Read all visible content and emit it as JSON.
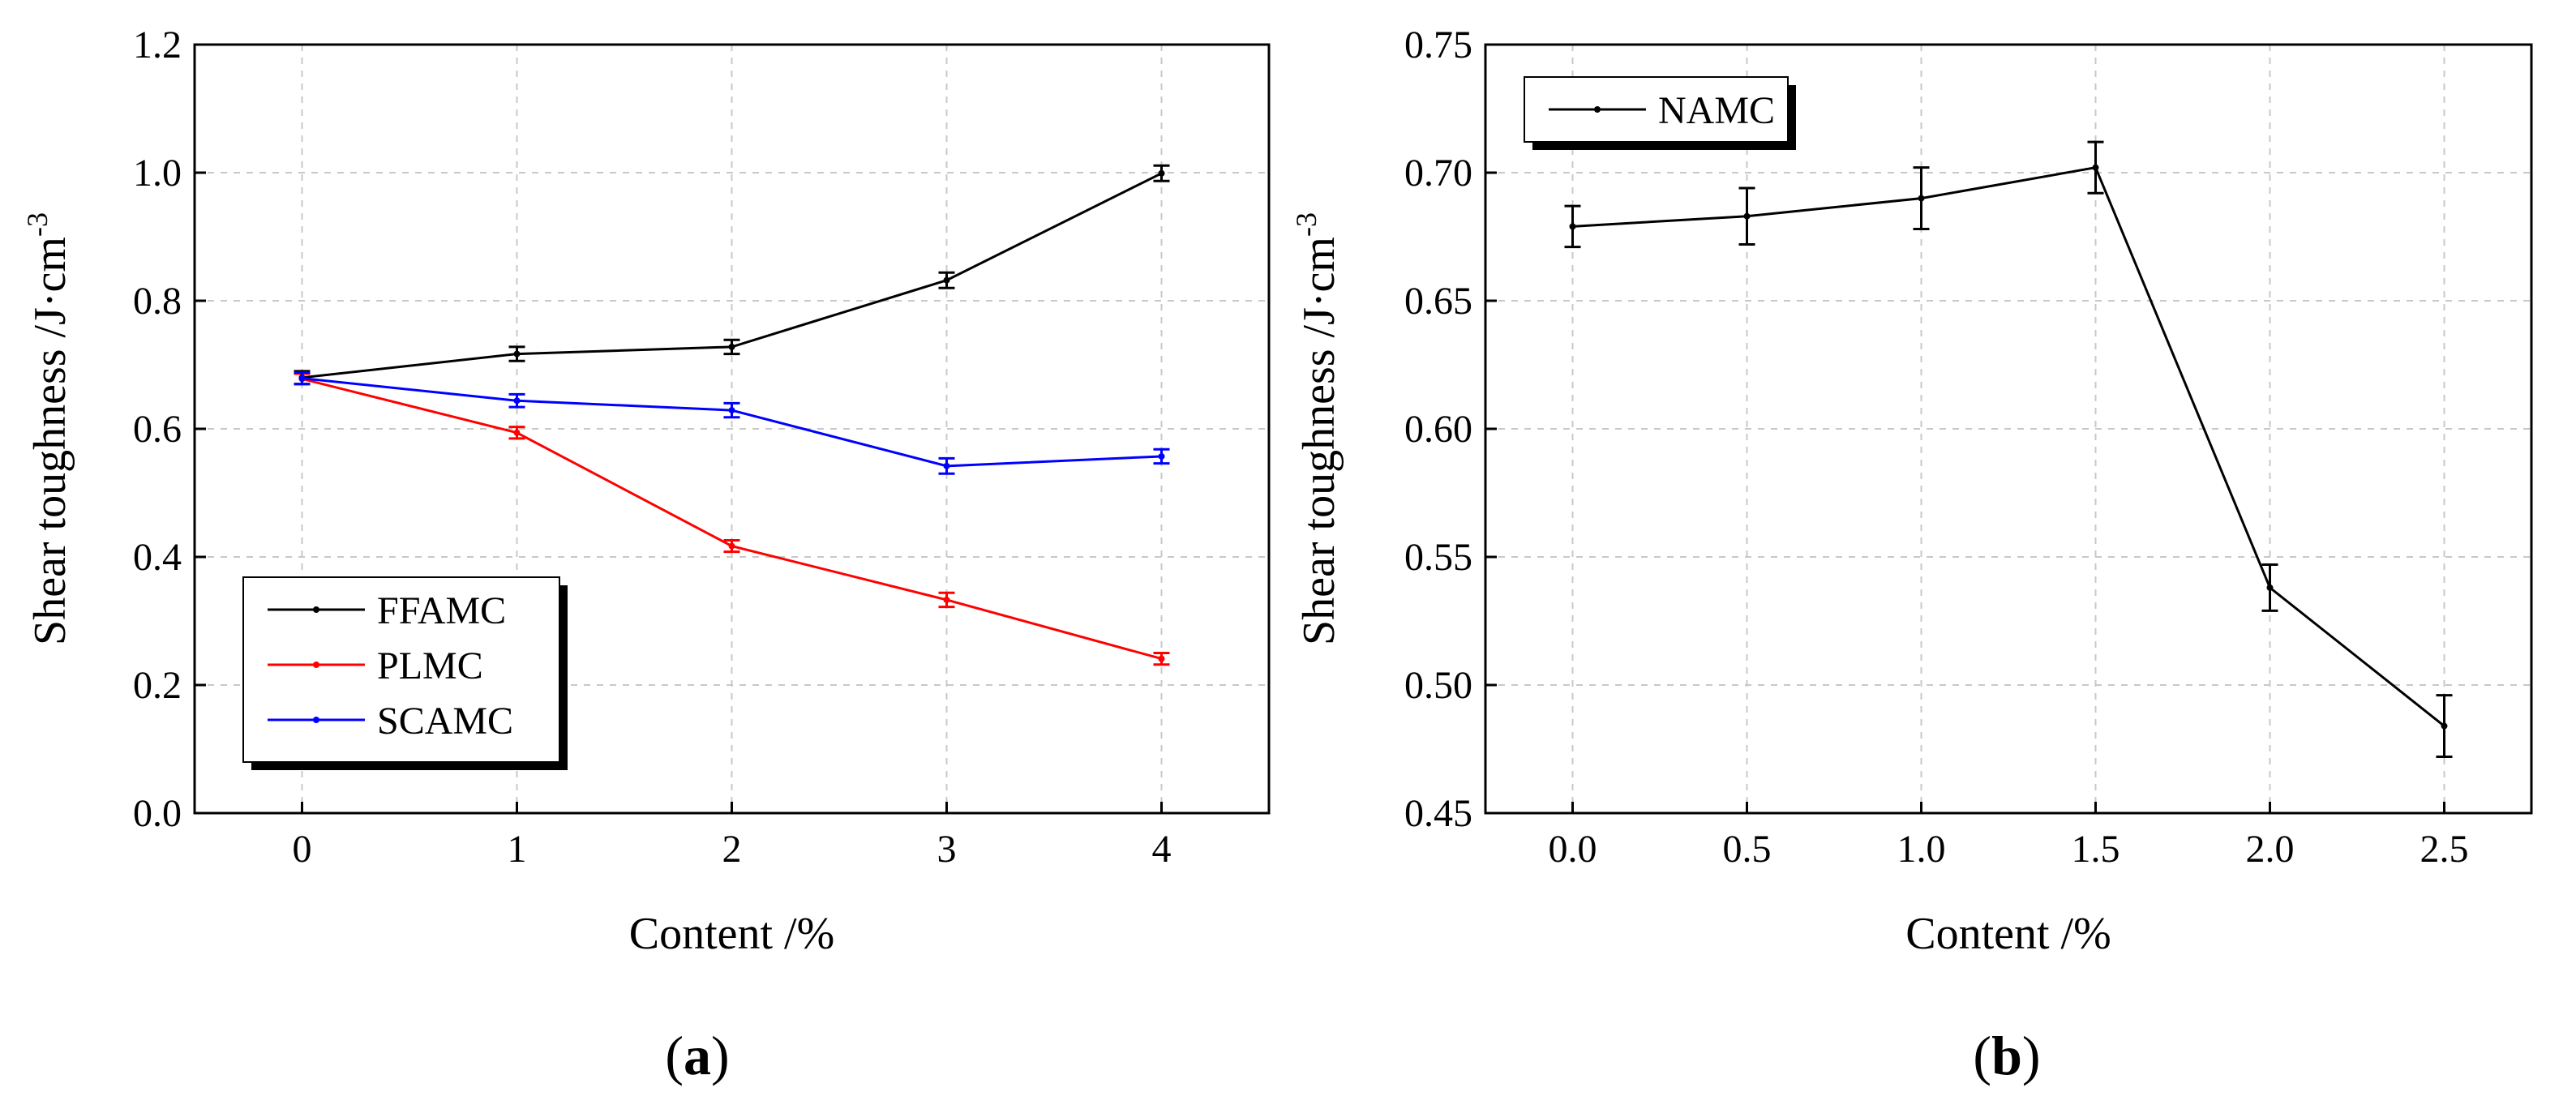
{
  "chart_data": [
    {
      "type": "line",
      "panel_label_open": "(",
      "panel_label_letter": "a",
      "panel_label_close": ")",
      "xlabel": "Content /%",
      "ylabel": "Shear toughness /J·cm",
      "ylabel_sup": "-3",
      "xlim": [
        -0.5,
        4.5
      ],
      "ylim": [
        0,
        1.2
      ],
      "xticks": [
        0,
        1,
        2,
        3,
        4
      ],
      "xtick_labels": [
        "0",
        "1",
        "2",
        "3",
        "4"
      ],
      "yticks": [
        0,
        0.2,
        0.4,
        0.6,
        0.8,
        1.0,
        1.2
      ],
      "ytick_labels": [
        "0.0",
        "0.2",
        "0.4",
        "0.6",
        "0.8",
        "1.0",
        "1.2"
      ],
      "grid": true,
      "legend_position": "bottom-left",
      "x": [
        0,
        1,
        2,
        3,
        4
      ],
      "series": [
        {
          "name": "FFAMC",
          "color": "#000000",
          "values": [
            0.68,
            0.717,
            0.728,
            0.832,
            0.999
          ],
          "errors": [
            0.01,
            0.011,
            0.011,
            0.012,
            0.012
          ]
        },
        {
          "name": "PLMC",
          "color": "#ff0000",
          "values": [
            0.678,
            0.594,
            0.417,
            0.333,
            0.241
          ],
          "errors": [
            0.008,
            0.009,
            0.009,
            0.011,
            0.009
          ]
        },
        {
          "name": "SCAMC",
          "color": "#0000ff",
          "values": [
            0.679,
            0.644,
            0.629,
            0.542,
            0.557
          ],
          "errors": [
            0.009,
            0.01,
            0.011,
            0.012,
            0.011
          ]
        }
      ]
    },
    {
      "type": "line",
      "panel_label_open": "(",
      "panel_label_letter": "b",
      "panel_label_close": ")",
      "xlabel": "Content /%",
      "ylabel": "Shear toughness /J·cm",
      "ylabel_sup": "-3",
      "xlim": [
        -0.25,
        2.75
      ],
      "ylim": [
        0.45,
        0.75
      ],
      "xticks": [
        0,
        0.5,
        1.0,
        1.5,
        2.0,
        2.5
      ],
      "xtick_labels": [
        "0.0",
        "0.5",
        "1.0",
        "1.5",
        "2.0",
        "2.5"
      ],
      "yticks": [
        0.45,
        0.5,
        0.55,
        0.6,
        0.65,
        0.7,
        0.75
      ],
      "ytick_labels": [
        "0.45",
        "0.50",
        "0.55",
        "0.60",
        "0.65",
        "0.70",
        "0.75"
      ],
      "grid": true,
      "legend_position": "top-left",
      "x": [
        0,
        0.5,
        1.0,
        1.5,
        2.0,
        2.5
      ],
      "series": [
        {
          "name": "NAMC",
          "color": "#000000",
          "values": [
            0.679,
            0.683,
            0.69,
            0.702,
            0.538,
            0.484
          ],
          "errors": [
            0.008,
            0.011,
            0.012,
            0.01,
            0.009,
            0.012
          ]
        }
      ]
    }
  ]
}
